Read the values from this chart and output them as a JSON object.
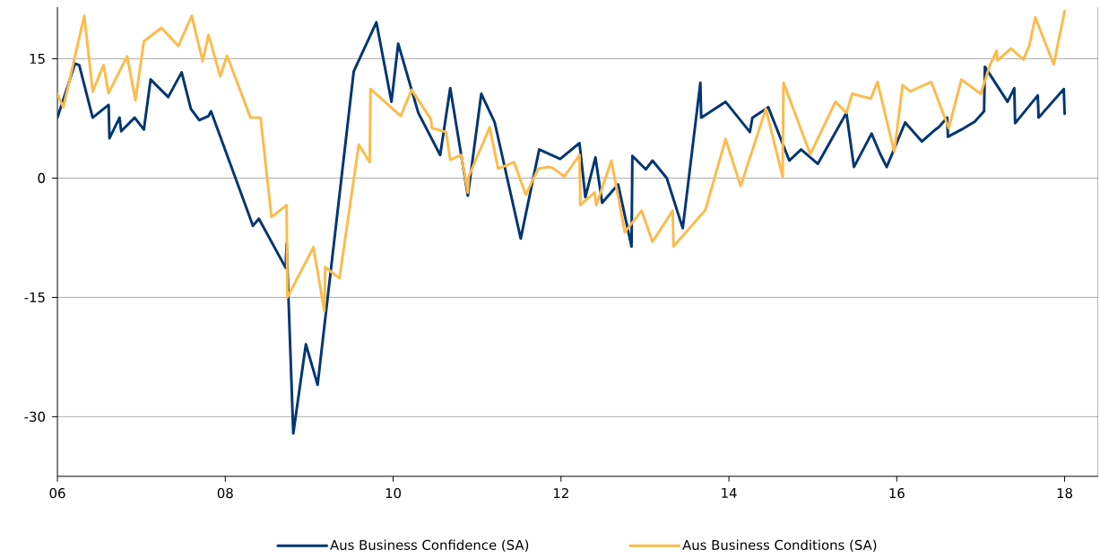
{
  "chart_data": {
    "type": "line",
    "xlim": [
      2006,
      2018.4
    ],
    "ylim": [
      -37.5,
      21.5
    ],
    "xticks": [
      {
        "value": 2006,
        "label": "06"
      },
      {
        "value": 2008,
        "label": "08"
      },
      {
        "value": 2010,
        "label": "10"
      },
      {
        "value": 2012,
        "label": "12"
      },
      {
        "value": 2014,
        "label": "14"
      },
      {
        "value": 2016,
        "label": "16"
      },
      {
        "value": 2018,
        "label": "18"
      }
    ],
    "yticks": [
      -30,
      -15,
      0,
      15
    ],
    "grid": "y",
    "legend": "bottom",
    "line_style": "solid",
    "series": [
      {
        "name": "Aus Business Confidence (SA)",
        "color": "#003673",
        "x": [
          2006.0,
          2006.21,
          2006.26,
          2006.42,
          2006.61,
          2006.62,
          2006.74,
          2006.76,
          2006.92,
          2007.03,
          2007.11,
          2007.32,
          2007.48,
          2007.59,
          2007.69,
          2007.8,
          2007.83,
          2008.33,
          2008.4,
          2008.72,
          2008.73,
          2008.81,
          2008.96,
          2009.1,
          2009.53,
          2009.8,
          2009.98,
          2010.06,
          2010.3,
          2010.56,
          2010.68,
          2010.89,
          2011.05,
          2011.21,
          2011.52,
          2011.74,
          2011.99,
          2012.22,
          2012.29,
          2012.41,
          2012.49,
          2012.68,
          2012.84,
          2012.85,
          2013.01,
          2013.09,
          2013.26,
          2013.45,
          2013.66,
          2013.67,
          2013.96,
          2014.25,
          2014.28,
          2014.47,
          2014.72,
          2014.86,
          2015.06,
          2015.4,
          2015.49,
          2015.7,
          2015.8,
          2015.88,
          2016.1,
          2016.3,
          2016.46,
          2016.5,
          2016.6,
          2016.61,
          2016.77,
          2016.93,
          2017.04,
          2017.05,
          2017.32,
          2017.4,
          2017.41,
          2017.68,
          2017.69,
          2017.99,
          2018.0
        ],
        "values": [
          7.6,
          14.4,
          14.2,
          7.6,
          9.2,
          5.0,
          7.6,
          5.9,
          7.6,
          6.1,
          12.4,
          10.2,
          13.3,
          8.7,
          7.3,
          7.8,
          8.4,
          -6.0,
          -5.1,
          -11.3,
          -8.3,
          -32.1,
          -20.9,
          -26.0,
          13.4,
          19.6,
          9.6,
          16.9,
          8.2,
          2.9,
          11.3,
          -2.2,
          10.6,
          7.0,
          -7.6,
          3.6,
          2.4,
          4.4,
          -2.4,
          2.6,
          -3.1,
          -0.8,
          -8.6,
          2.8,
          1.1,
          2.2,
          0,
          -6.3,
          12.0,
          7.6,
          9.6,
          5.8,
          7.6,
          8.9,
          2.2,
          3.6,
          1.8,
          8.2,
          1.4,
          5.6,
          3.1,
          1.4,
          7.0,
          4.6,
          6.1,
          6.4,
          7.6,
          5.2,
          6.1,
          7.1,
          8.4,
          14.0,
          9.6,
          11.3,
          6.9,
          10.4,
          7.6,
          11.2,
          8.1
        ]
      },
      {
        "name": "Aus Business Conditions (SA)",
        "color": "#fdbb4c",
        "x": [
          2006.0,
          2006.07,
          2006.32,
          2006.42,
          2006.55,
          2006.61,
          2006.83,
          2006.93,
          2007.03,
          2007.24,
          2007.44,
          2007.6,
          2007.73,
          2007.8,
          2007.94,
          2008.02,
          2008.19,
          2008.3,
          2008.42,
          2008.55,
          2008.73,
          2008.74,
          2009.05,
          2009.18,
          2009.19,
          2009.36,
          2009.59,
          2009.72,
          2009.73,
          2010.09,
          2010.22,
          2010.45,
          2010.46,
          2010.63,
          2010.68,
          2010.81,
          2010.89,
          2010.9,
          2011.15,
          2011.25,
          2011.44,
          2011.58,
          2011.73,
          2011.86,
          2011.91,
          2012.04,
          2012.22,
          2012.23,
          2012.4,
          2012.42,
          2012.6,
          2012.76,
          2012.96,
          2013.09,
          2013.33,
          2013.34,
          2013.72,
          2013.96,
          2014.14,
          2014.44,
          2014.64,
          2014.65,
          2014.97,
          2015.27,
          2015.4,
          2015.47,
          2015.69,
          2015.77,
          2015.97,
          2016.07,
          2016.16,
          2016.41,
          2016.62,
          2016.77,
          2017.0,
          2017.11,
          2017.19,
          2017.2,
          2017.36,
          2017.51,
          2017.58,
          2017.65,
          2017.87,
          2018.0
        ],
        "values": [
          10.6,
          8.9,
          20.4,
          10.9,
          14.2,
          10.7,
          15.3,
          9.8,
          17.2,
          18.9,
          16.6,
          20.4,
          14.7,
          18.0,
          12.8,
          15.4,
          10.7,
          7.6,
          7.6,
          -4.9,
          -3.4,
          -15.0,
          -8.7,
          -16.7,
          -11.2,
          -12.6,
          4.2,
          2.0,
          11.2,
          7.8,
          11.1,
          7.4,
          6.3,
          5.8,
          2.3,
          2.9,
          -1.8,
          0.2,
          6.4,
          1.2,
          2.0,
          -2.1,
          1.2,
          1.4,
          1.2,
          0.2,
          2.9,
          -3.4,
          -1.8,
          -3.4,
          2.2,
          -6.8,
          -4.1,
          -8.0,
          -4.1,
          -8.6,
          -4.0,
          4.9,
          -1.0,
          8.7,
          0.2,
          12.0,
          3.0,
          9.6,
          8.2,
          10.6,
          10.0,
          12.1,
          3.3,
          11.7,
          10.9,
          12.1,
          6.3,
          12.4,
          10.6,
          14.2,
          16.0,
          14.8,
          16.3,
          14.9,
          16.7,
          20.2,
          14.3,
          21.0
        ]
      }
    ]
  }
}
